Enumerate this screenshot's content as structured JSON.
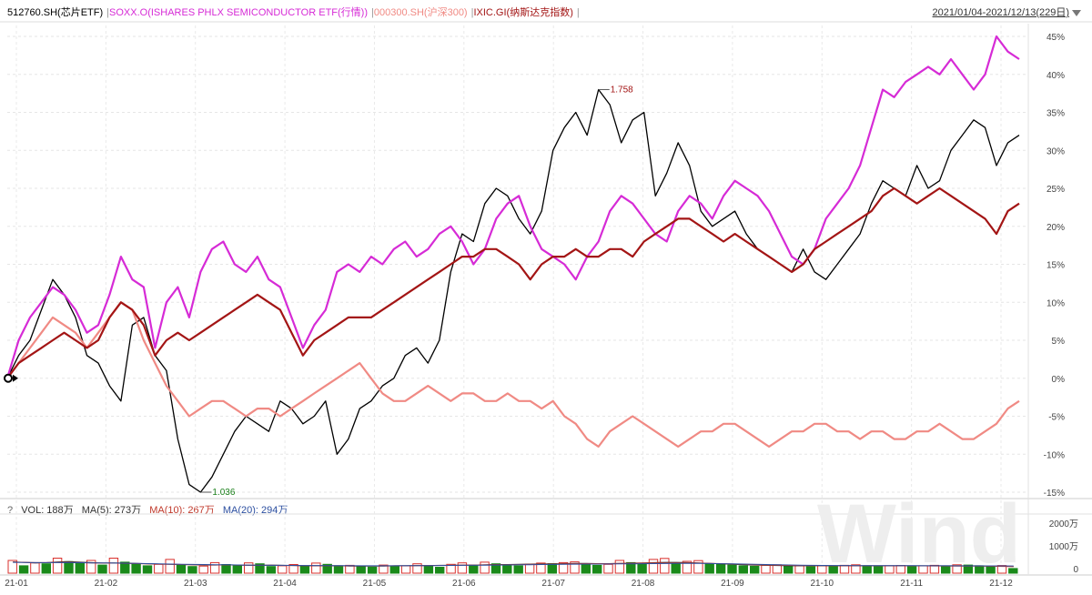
{
  "header": {
    "legend": [
      {
        "label": "512760.SH(芯片ETF)",
        "color": "#000000"
      },
      {
        "label": "SOXX.O(ISHARES PHLX SEMICONDUCTOR ETF(行情))",
        "color": "#d62bd6"
      },
      {
        "label": "000300.SH(沪深300)",
        "color": "#f08a84"
      },
      {
        "label": "IXIC.GI(纳斯达克指数)",
        "color": "#a31515"
      }
    ],
    "separator": "|",
    "date_range": "2021/01/04-2021/12/13(229日)"
  },
  "volume_legend": {
    "question": "?",
    "vol": "VOL: 188万",
    "ma5": "MA(5): 273万",
    "ma10": "MA(10): 267万",
    "ma20": "MA(20): 294万",
    "colors": {
      "vol": "#333333",
      "ma5": "#333333",
      "ma10": "#c0392b",
      "ma20": "#2c4fa0"
    }
  },
  "watermark": "Wind",
  "chart_data": [
    {
      "type": "line",
      "title": "",
      "ylabel": "",
      "ylim": [
        -15,
        45
      ],
      "yticks": [
        "45%",
        "40%",
        "35%",
        "30%",
        "25%",
        "20%",
        "15%",
        "10%",
        "5%",
        "0%",
        "-5%",
        "-10%",
        "-15%"
      ],
      "xticks": [
        "21-01",
        "21-02",
        "21-03",
        "21-04",
        "21-05",
        "21-06",
        "21-07",
        "21-08",
        "21-09",
        "21-10",
        "21-11",
        "21-12"
      ],
      "annotations": [
        {
          "text": "1.758",
          "series": "512760.SH(芯片ETF)",
          "at": "max"
        },
        {
          "text": "1.036",
          "series": "512760.SH(芯片ETF)",
          "at": "min"
        }
      ],
      "grid": true,
      "series": [
        {
          "name": "512760.SH(芯片ETF)",
          "color": "#000000",
          "values": [
            0,
            3,
            5,
            9,
            13,
            11,
            8,
            3,
            2,
            -1,
            -3,
            7,
            8,
            3,
            1,
            -8,
            -14,
            -15,
            -13,
            -10,
            -7,
            -5,
            -6,
            -7,
            -3,
            -4,
            -6,
            -5,
            -3,
            -10,
            -8,
            -4,
            -3,
            -1,
            0,
            3,
            4,
            2,
            5,
            14,
            19,
            18,
            23,
            25,
            24,
            21,
            19,
            22,
            30,
            33,
            35,
            32,
            38,
            36,
            31,
            34,
            35,
            24,
            27,
            31,
            28,
            22,
            20,
            21,
            22,
            19,
            17,
            16,
            15,
            14,
            17,
            14,
            13,
            15,
            17,
            19,
            23,
            26,
            25,
            24,
            28,
            25,
            26,
            30,
            32,
            34,
            33,
            28,
            31,
            32
          ]
        },
        {
          "name": "SOXX.O(ISHARES PHLX SEMICONDUCTOR ETF(行情))",
          "color": "#d62bd6",
          "values": [
            0,
            5,
            8,
            10,
            12,
            11,
            9,
            6,
            7,
            11,
            16,
            13,
            12,
            4,
            10,
            12,
            8,
            14,
            17,
            18,
            15,
            14,
            16,
            13,
            12,
            8,
            4,
            7,
            9,
            14,
            15,
            14,
            16,
            15,
            17,
            18,
            16,
            17,
            19,
            20,
            18,
            15,
            17,
            21,
            23,
            24,
            20,
            17,
            16,
            15,
            13,
            16,
            18,
            22,
            24,
            23,
            21,
            19,
            18,
            22,
            24,
            23,
            21,
            24,
            26,
            25,
            24,
            22,
            19,
            16,
            15,
            17,
            21,
            23,
            25,
            28,
            33,
            38,
            37,
            39,
            40,
            41,
            40,
            42,
            40,
            38,
            40,
            45,
            43,
            42
          ]
        },
        {
          "name": "000300.SH(沪深300)",
          "color": "#f08a84",
          "values": [
            0,
            2,
            4,
            6,
            8,
            7,
            6,
            4,
            6,
            8,
            10,
            9,
            5,
            2,
            -1,
            -3,
            -5,
            -4,
            -3,
            -3,
            -4,
            -5,
            -4,
            -4,
            -5,
            -4,
            -3,
            -2,
            -1,
            0,
            1,
            2,
            0,
            -2,
            -3,
            -3,
            -2,
            -1,
            -2,
            -3,
            -2,
            -2,
            -3,
            -3,
            -2,
            -3,
            -3,
            -4,
            -3,
            -5,
            -6,
            -8,
            -9,
            -7,
            -6,
            -5,
            -6,
            -7,
            -8,
            -9,
            -8,
            -7,
            -7,
            -6,
            -6,
            -7,
            -8,
            -9,
            -8,
            -7,
            -7,
            -6,
            -6,
            -7,
            -7,
            -8,
            -7,
            -7,
            -8,
            -8,
            -7,
            -7,
            -6,
            -7,
            -8,
            -8,
            -7,
            -6,
            -4,
            -3
          ]
        },
        {
          "name": "IXIC.GI(纳斯达克指数)",
          "color": "#a31515",
          "values": [
            0,
            2,
            3,
            4,
            5,
            6,
            5,
            4,
            5,
            8,
            10,
            9,
            7,
            3,
            5,
            6,
            5,
            6,
            7,
            8,
            9,
            10,
            11,
            10,
            9,
            6,
            3,
            5,
            6,
            7,
            8,
            8,
            8,
            9,
            10,
            11,
            12,
            13,
            14,
            15,
            16,
            16,
            17,
            17,
            16,
            15,
            13,
            15,
            16,
            16,
            17,
            16,
            16,
            17,
            17,
            16,
            18,
            19,
            20,
            21,
            21,
            20,
            19,
            18,
            19,
            18,
            17,
            16,
            15,
            14,
            15,
            17,
            18,
            19,
            20,
            21,
            22,
            24,
            25,
            24,
            23,
            24,
            25,
            24,
            23,
            22,
            21,
            19,
            22,
            23
          ]
        }
      ]
    },
    {
      "type": "bar",
      "title": "",
      "ylabel": "",
      "ylim": [
        0,
        2000
      ],
      "yticks": [
        "2000万",
        "1000万",
        "0"
      ],
      "series": [
        {
          "name": "VOL",
          "values": [
            520,
            300,
            420,
            380,
            610,
            470,
            390,
            520,
            330,
            610,
            450,
            380,
            300,
            360,
            560,
            320,
            270,
            290,
            430,
            350,
            310,
            420,
            380,
            270,
            300,
            350,
            280,
            410,
            360,
            300,
            320,
            270,
            250,
            330,
            290,
            300,
            380,
            300,
            240,
            360,
            420,
            330,
            450,
            380,
            310,
            300,
            360,
            410,
            390,
            430,
            460,
            380,
            320,
            360,
            520,
            430,
            390,
            560,
            600,
            420,
            480,
            510,
            380,
            360,
            330,
            300,
            280,
            320,
            340,
            290,
            300,
            260,
            310,
            280,
            320,
            340,
            300,
            280,
            300,
            310,
            270,
            300,
            320,
            280,
            340,
            330,
            300,
            280,
            310,
            188
          ]
        },
        {
          "name": "MA(5)",
          "values": [
            460,
            440,
            420,
            430,
            460,
            470,
            450,
            430,
            410,
            420,
            410,
            400,
            380,
            370,
            360,
            350,
            340,
            330,
            330,
            340,
            330,
            320,
            320,
            330,
            320,
            310,
            300,
            300,
            300,
            300,
            290,
            290,
            290,
            290,
            300,
            300,
            310,
            310,
            320,
            320,
            330,
            330,
            340,
            350,
            350,
            360,
            370,
            380,
            380,
            390,
            400,
            400,
            390,
            390,
            400,
            410,
            420,
            430,
            440,
            440,
            430,
            420,
            400,
            380,
            360,
            340,
            330,
            320,
            310,
            300,
            300,
            300,
            300,
            300,
            300,
            300,
            300,
            300,
            300,
            300,
            300,
            300,
            300,
            300,
            300,
            300,
            300,
            290,
            280,
            273
          ]
        },
        {
          "name": "MA(10)",
          "values": [
            450,
            440,
            430,
            430,
            440,
            440,
            430,
            420,
            410,
            410,
            400,
            390,
            380,
            370,
            360,
            350,
            345,
            340,
            335,
            335,
            330,
            325,
            320,
            320,
            315,
            310,
            305,
            300,
            300,
            300,
            295,
            295,
            295,
            295,
            300,
            300,
            305,
            310,
            315,
            320,
            325,
            330,
            335,
            340,
            345,
            350,
            360,
            365,
            370,
            380,
            385,
            390,
            390,
            390,
            395,
            400,
            410,
            415,
            420,
            420,
            415,
            410,
            400,
            390,
            375,
            360,
            345,
            335,
            325,
            315,
            310,
            305,
            305,
            300,
            300,
            300,
            300,
            300,
            300,
            300,
            298,
            296,
            294,
            292,
            290,
            288,
            285,
            280,
            275,
            267
          ]
        },
        {
          "name": "MA(20)",
          "values": [
            440,
            435,
            430,
            430,
            430,
            430,
            425,
            420,
            415,
            410,
            405,
            400,
            390,
            380,
            370,
            360,
            355,
            350,
            345,
            340,
            335,
            330,
            325,
            320,
            318,
            315,
            312,
            310,
            308,
            305,
            303,
            301,
            300,
            300,
            300,
            302,
            304,
            306,
            310,
            314,
            318,
            322,
            326,
            330,
            335,
            340,
            345,
            350,
            355,
            360,
            365,
            370,
            372,
            374,
            376,
            380,
            384,
            388,
            392,
            396,
            398,
            396,
            392,
            386,
            378,
            370,
            360,
            350,
            340,
            332,
            326,
            320,
            316,
            312,
            310,
            308,
            306,
            305,
            304,
            303,
            302,
            301,
            300,
            299,
            298,
            297,
            296,
            296,
            295,
            294
          ]
        }
      ]
    }
  ]
}
